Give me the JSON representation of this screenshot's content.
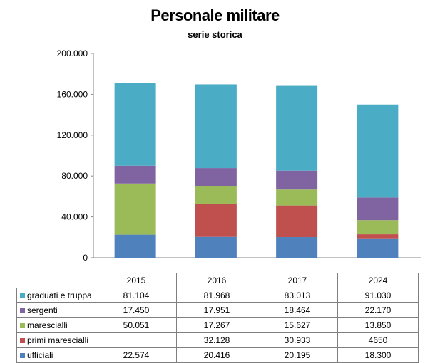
{
  "title": "Personale militare",
  "subtitle": "serie storica",
  "chart_data": {
    "type": "bar",
    "stacked": true,
    "title": "Personale militare",
    "subtitle": "serie storica",
    "categories": [
      "2015",
      "2016",
      "2017",
      "2024"
    ],
    "ylim": [
      0,
      200000
    ],
    "y_ticks": [
      "0",
      "40.000",
      "80.000",
      "120.000",
      "160.000",
      "200.000"
    ],
    "y_tick_values": [
      0,
      40000,
      80000,
      120000,
      160000,
      200000
    ],
    "legend_placement": "data table below chart",
    "series": [
      {
        "name": "ufficiali",
        "color": "#4f81bd",
        "values": [
          22574,
          20416,
          20195,
          18300
        ],
        "labels": [
          "22.574",
          "20.416",
          "20.195",
          "18.300"
        ]
      },
      {
        "name": "primi marescialli",
        "color": "#c0504d",
        "values": [
          null,
          32128,
          30933,
          4650
        ],
        "labels": [
          "",
          "32.128",
          "30.933",
          "4650"
        ]
      },
      {
        "name": "marescialli",
        "color": "#9bbb59",
        "values": [
          50051,
          17267,
          15627,
          13850
        ],
        "labels": [
          "50.051",
          "17.267",
          "15.627",
          "13.850"
        ]
      },
      {
        "name": "sergenti",
        "color": "#8064a2",
        "values": [
          17450,
          17951,
          18464,
          22170
        ],
        "labels": [
          "17.450",
          "17.951",
          "18.464",
          "22.170"
        ]
      },
      {
        "name": "graduati e truppa",
        "color": "#4bacc6",
        "values": [
          81104,
          81968,
          83013,
          91030
        ],
        "labels": [
          "81.104",
          "81.968",
          "83.013",
          "91.030"
        ]
      }
    ]
  }
}
